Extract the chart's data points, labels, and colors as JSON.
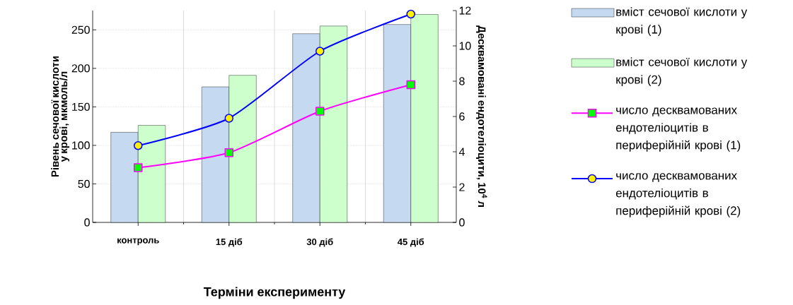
{
  "chart_data": {
    "type": "bar",
    "categories": [
      "контроль",
      "15 діб",
      "30 діб",
      "45 діб"
    ],
    "xlabel": "Терміни експерименту",
    "ylabel": "Рівень сечової кислоти у крові, мкмоль/л",
    "y2label": "Десквамовані ендотеліоцити, 10$^{4}$ л",
    "series": [
      {
        "name": "вміст сечової кислоти у крові (1)",
        "color": "#c5d9f1",
        "values": [
          117,
          176,
          245,
          257
        ]
      },
      {
        "name": "вміст сечової кислоти у крові (2)",
        "color": "#ccffcc",
        "values": [
          126,
          191,
          255,
          270
        ]
      },
      {
        "name": "число десквамованих ендотеліоцитів в периферійній крові (1)",
        "type": "line",
        "axis": "y2",
        "marker": "square",
        "color": "#ff00ff",
        "values": [
          3.1,
          3.95,
          6.3,
          7.8
        ]
      },
      {
        "name": "число десквамованих ендотеліоцитів в периферійній крові (2)",
        "type": "line",
        "axis": "y2",
        "marker": "circle",
        "color": "#0000ff",
        "values": [
          4.35,
          5.9,
          9.7,
          11.8
        ]
      }
    ],
    "ylim": [
      0,
      275
    ],
    "yticks": [
      0,
      50,
      100,
      150,
      200,
      250
    ],
    "y2lim": [
      0,
      12
    ],
    "y2ticks": [
      0,
      2,
      4,
      6,
      8,
      10,
      12
    ],
    "grid": true,
    "legend": "right"
  }
}
